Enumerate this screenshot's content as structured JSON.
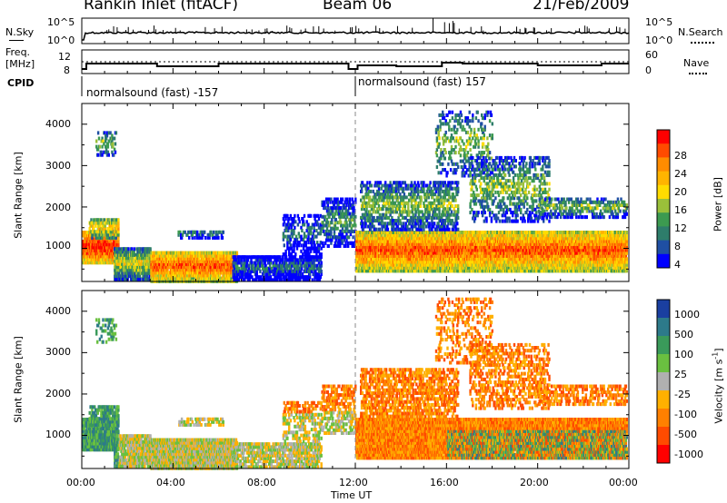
{
  "header": {
    "station": "Rankin Inlet (fitACF)",
    "beam": "Beam 06",
    "date": "21/Feb/2009"
  },
  "top_panels": {
    "nsky_label": "N.Sky",
    "nsky_ticks": [
      "10^5",
      "10^0"
    ],
    "nsearch_label": "N.Search",
    "nsearch_ticks": [
      "10^5",
      "10^0"
    ],
    "freq_label": "Freq.",
    "freq_unit": "[MHz]",
    "freq_ticks": [
      "12",
      "8"
    ],
    "nave_label": "Nave",
    "nave_ticks": [
      "60",
      "0"
    ],
    "cpid_label": "CPID",
    "cpid_segments": [
      {
        "label": "normalsound (fast) -157",
        "start_hour": 0
      },
      {
        "label": "normalsound (fast) 157",
        "start_hour": 12
      }
    ]
  },
  "chart_data": [
    {
      "type": "heatmap",
      "name": "power",
      "ylabel": "Slant Range [km]",
      "ylim": [
        200,
        4500
      ],
      "xlim_hours": [
        0,
        24
      ],
      "yticks": [
        "4000",
        "3000",
        "2000",
        "1000"
      ],
      "colorbar": {
        "label": "Power [dB]",
        "ticks": [
          "28",
          "24",
          "20",
          "16",
          "12",
          "8",
          "4"
        ],
        "colors": [
          "#ff0000",
          "#ff4b00",
          "#ff8c00",
          "#ffb400",
          "#ffdc00",
          "#9ac03a",
          "#3c9a50",
          "#2e7d6b",
          "#1f4fa3",
          "#0000ff"
        ]
      }
    },
    {
      "type": "heatmap",
      "name": "velocity",
      "ylabel": "Slant Range [km]",
      "ylim": [
        200,
        4500
      ],
      "xlim_hours": [
        0,
        24
      ],
      "yticks": [
        "4000",
        "3000",
        "2000",
        "1000"
      ],
      "colorbar": {
        "label": "Velocity [m s",
        "label_sup": "-1",
        "label_tail": "]",
        "ticks": [
          "1000",
          "500",
          "100",
          "25",
          "-25",
          "-100",
          "-500",
          "-1000"
        ],
        "colors": [
          "#1a3fa0",
          "#2d7a8a",
          "#3a9a5a",
          "#6ac040",
          "#b0b0b0",
          "#ffb000",
          "#ff8000",
          "#ff4b00",
          "#ff0000"
        ]
      }
    }
  ],
  "xaxis": {
    "ticks": [
      "00:00",
      "04:00",
      "08:00",
      "12:00",
      "16:00",
      "20:00",
      "00:00"
    ],
    "label": "Time UT"
  }
}
